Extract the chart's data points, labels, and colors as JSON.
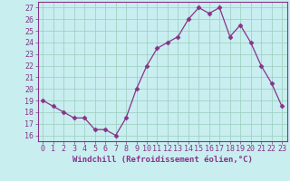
{
  "x": [
    0,
    1,
    2,
    3,
    4,
    5,
    6,
    7,
    8,
    9,
    10,
    11,
    12,
    13,
    14,
    15,
    16,
    17,
    18,
    19,
    20,
    21,
    22,
    23
  ],
  "y": [
    19,
    18.5,
    18,
    17.5,
    17.5,
    16.5,
    16.5,
    16,
    17.5,
    20,
    22,
    23.5,
    24,
    24.5,
    26,
    27,
    26.5,
    27,
    24.5,
    25.5,
    24,
    22,
    20.5,
    18.5
  ],
  "line_color": "#883388",
  "marker": "D",
  "marker_size": 2.5,
  "line_width": 0.9,
  "xlabel": "Windchill (Refroidissement éolien,°C)",
  "xlabel_fontsize": 6.5,
  "yticks": [
    16,
    17,
    18,
    19,
    20,
    21,
    22,
    23,
    24,
    25,
    26,
    27
  ],
  "xlim": [
    -0.5,
    23.5
  ],
  "ylim": [
    15.5,
    27.5
  ],
  "bg_color": "#c8eef0",
  "grid_color": "#99ccbb",
  "tick_fontsize": 6,
  "axis_color": "#883388",
  "label_color": "#883388",
  "spine_color": "#883388"
}
